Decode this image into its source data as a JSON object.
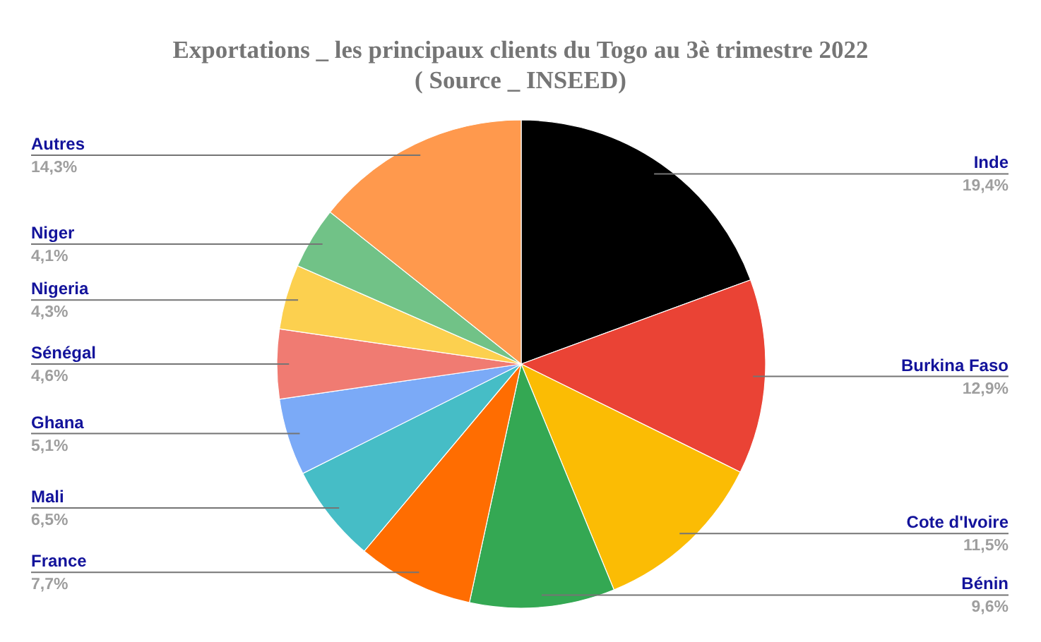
{
  "chart_data": {
    "type": "pie",
    "title": "Exportations _ les principaux clients du Togo au  3è trimestre 2022",
    "annotations": [
      "( Source _ INSEED)"
    ],
    "categories": [
      "Inde",
      "Burkina Faso",
      "Cote d'Ivoire",
      "Bénin",
      "France",
      "Mali",
      "Ghana",
      "Sénégal",
      "Nigeria",
      "Niger",
      "Autres"
    ],
    "values": [
      19.4,
      12.9,
      11.5,
      9.6,
      7.7,
      6.5,
      5.1,
      4.6,
      4.3,
      4.1,
      14.3
    ],
    "colors": [
      "#000000",
      "#ea4335",
      "#fbbc04",
      "#34a853",
      "#ff6d01",
      "#46bdc6",
      "#7baaf7",
      "#f07b72",
      "#fcd04f",
      "#71c287",
      "#ff994d"
    ],
    "value_labels": [
      "19,4%",
      "12,9%",
      "11,5%",
      "9,6%",
      "7,7%",
      "6,5%",
      "5,1%",
      "4,6%",
      "4,3%",
      "4,1%",
      "14,3%"
    ]
  }
}
